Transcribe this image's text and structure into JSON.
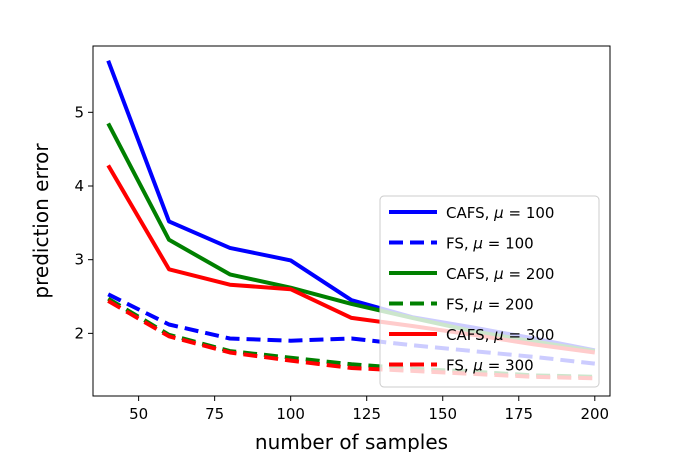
{
  "chart_data": {
    "type": "line",
    "title": "",
    "xlabel": "number of samples",
    "ylabel": "prediction error",
    "xlim": [
      35,
      205
    ],
    "ylim": [
      1.15,
      5.9
    ],
    "xticks": [
      50,
      75,
      100,
      125,
      150,
      175,
      200
    ],
    "yticks": [
      2,
      3,
      4,
      5
    ],
    "grid": false,
    "legend_position": "lower-right",
    "x": [
      40,
      60,
      80,
      100,
      120,
      140,
      160,
      180,
      200
    ],
    "series": [
      {
        "name": "CAFS, μ = 100",
        "label_prefix": "CAFS, ",
        "label_value": "100",
        "color": "#0000ff",
        "dash": "solid",
        "values": [
          5.7,
          3.52,
          3.16,
          2.99,
          2.45,
          2.22,
          2.08,
          1.93,
          1.77
        ]
      },
      {
        "name": "FS, μ = 100",
        "label_prefix": "FS, ",
        "label_value": "100",
        "color": "#0000ff",
        "dash": "dashed",
        "values": [
          2.53,
          2.12,
          1.93,
          1.9,
          1.93,
          1.84,
          1.76,
          1.68,
          1.59
        ]
      },
      {
        "name": "CAFS, μ = 200",
        "label_prefix": "CAFS, ",
        "label_value": "200",
        "color": "#008000",
        "dash": "solid",
        "values": [
          4.85,
          3.27,
          2.8,
          2.62,
          2.4,
          2.21,
          2.03,
          1.89,
          1.76
        ]
      },
      {
        "name": "FS, μ = 200",
        "label_prefix": "FS, ",
        "label_value": "200",
        "color": "#008000",
        "dash": "dashed",
        "values": [
          2.47,
          1.98,
          1.76,
          1.67,
          1.58,
          1.52,
          1.48,
          1.43,
          1.41
        ]
      },
      {
        "name": "CAFS, μ = 300",
        "label_prefix": "CAFS, ",
        "label_value": "300",
        "color": "#ff0000",
        "dash": "solid",
        "values": [
          4.28,
          2.87,
          2.66,
          2.6,
          2.21,
          2.1,
          1.98,
          1.85,
          1.74
        ]
      },
      {
        "name": "FS, μ = 300",
        "label_prefix": "FS, ",
        "label_value": "300",
        "color": "#ff0000",
        "dash": "dashed",
        "values": [
          2.44,
          1.96,
          1.74,
          1.63,
          1.53,
          1.49,
          1.45,
          1.41,
          1.39
        ]
      }
    ]
  }
}
